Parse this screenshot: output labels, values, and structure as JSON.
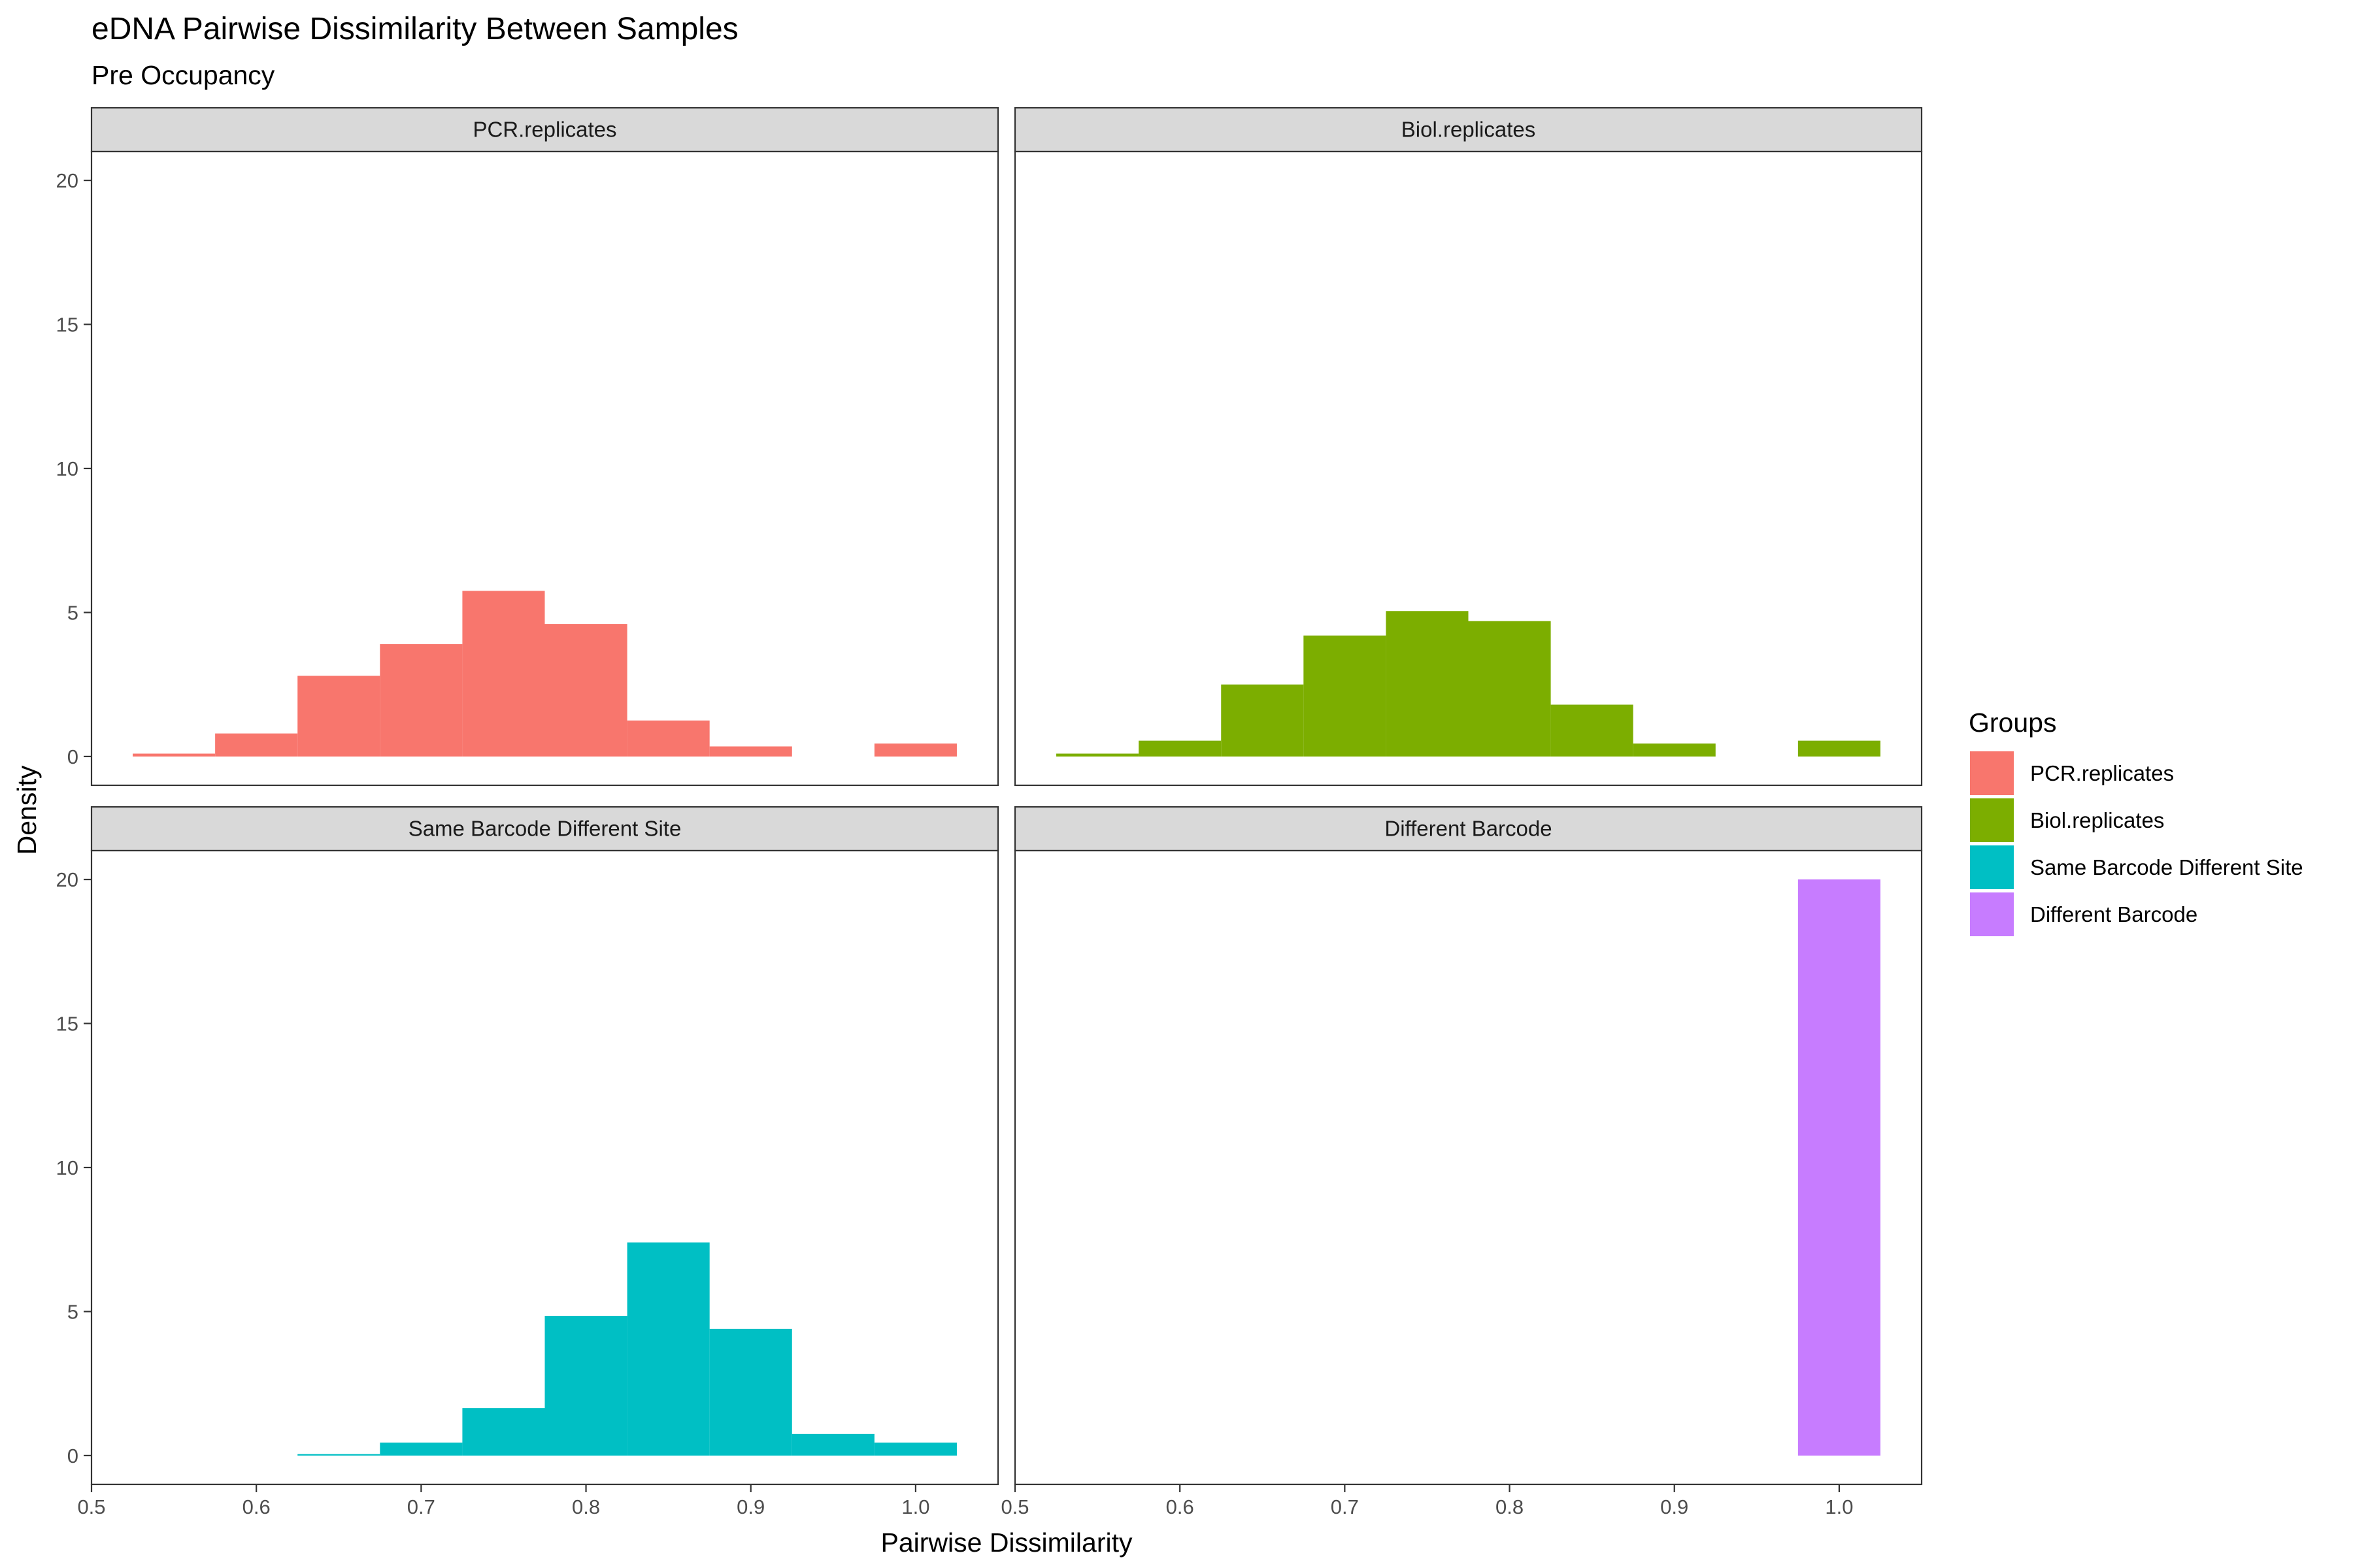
{
  "chart_data": {
    "type": "bar",
    "subtype": "faceted-histogram",
    "title": "eDNA Pairwise Dissimilarity Between Samples",
    "subtitle": "Pre Occupancy",
    "xlabel": "Pairwise Dissimilarity",
    "ylabel": "Density",
    "xlim": [
      0.5,
      1.05
    ],
    "ylim": [
      -1,
      21
    ],
    "x_ticks": [
      "0.5",
      "0.6",
      "0.7",
      "0.8",
      "0.9",
      "1.0"
    ],
    "y_ticks": [
      "0",
      "5",
      "10",
      "15",
      "20"
    ],
    "bin_width": 0.05,
    "grid": false,
    "legend": {
      "title": "Groups",
      "position": "right",
      "entries": [
        {
          "label": "PCR.replicates",
          "color": "#F8766D"
        },
        {
          "label": "Biol.replicates",
          "color": "#7CAE00"
        },
        {
          "label": "Same Barcode Different Site",
          "color": "#00BFC4"
        },
        {
          "label": "Different Barcode",
          "color": "#C77CFF"
        }
      ]
    },
    "panels": [
      {
        "strip": "PCR.replicates",
        "color": "#F8766D",
        "bins": [
          [
            0.55,
            0.1
          ],
          [
            0.6,
            0.8
          ],
          [
            0.65,
            2.8
          ],
          [
            0.7,
            3.9
          ],
          [
            0.75,
            5.75
          ],
          [
            0.8,
            4.6
          ],
          [
            0.85,
            1.25
          ],
          [
            0.9,
            0.35
          ],
          [
            0.95,
            0
          ],
          [
            1.0,
            0.45
          ]
        ]
      },
      {
        "strip": "Biol.replicates",
        "color": "#7CAE00",
        "bins": [
          [
            0.55,
            0.1
          ],
          [
            0.6,
            0.55
          ],
          [
            0.65,
            2.5
          ],
          [
            0.7,
            4.2
          ],
          [
            0.75,
            5.05
          ],
          [
            0.8,
            4.7
          ],
          [
            0.85,
            1.8
          ],
          [
            0.9,
            0.45
          ],
          [
            0.95,
            0
          ],
          [
            1.0,
            0.55
          ]
        ]
      },
      {
        "strip": "Same Barcode Different Site",
        "color": "#00BFC4",
        "bins": [
          [
            0.65,
            0.05
          ],
          [
            0.7,
            0.45
          ],
          [
            0.75,
            1.65
          ],
          [
            0.8,
            4.85
          ],
          [
            0.85,
            7.4
          ],
          [
            0.9,
            4.4
          ],
          [
            0.95,
            0.75
          ],
          [
            1.0,
            0.45
          ]
        ]
      },
      {
        "strip": "Different Barcode",
        "color": "#C77CFF",
        "bins": [
          [
            1.0,
            20.0
          ]
        ]
      }
    ]
  }
}
